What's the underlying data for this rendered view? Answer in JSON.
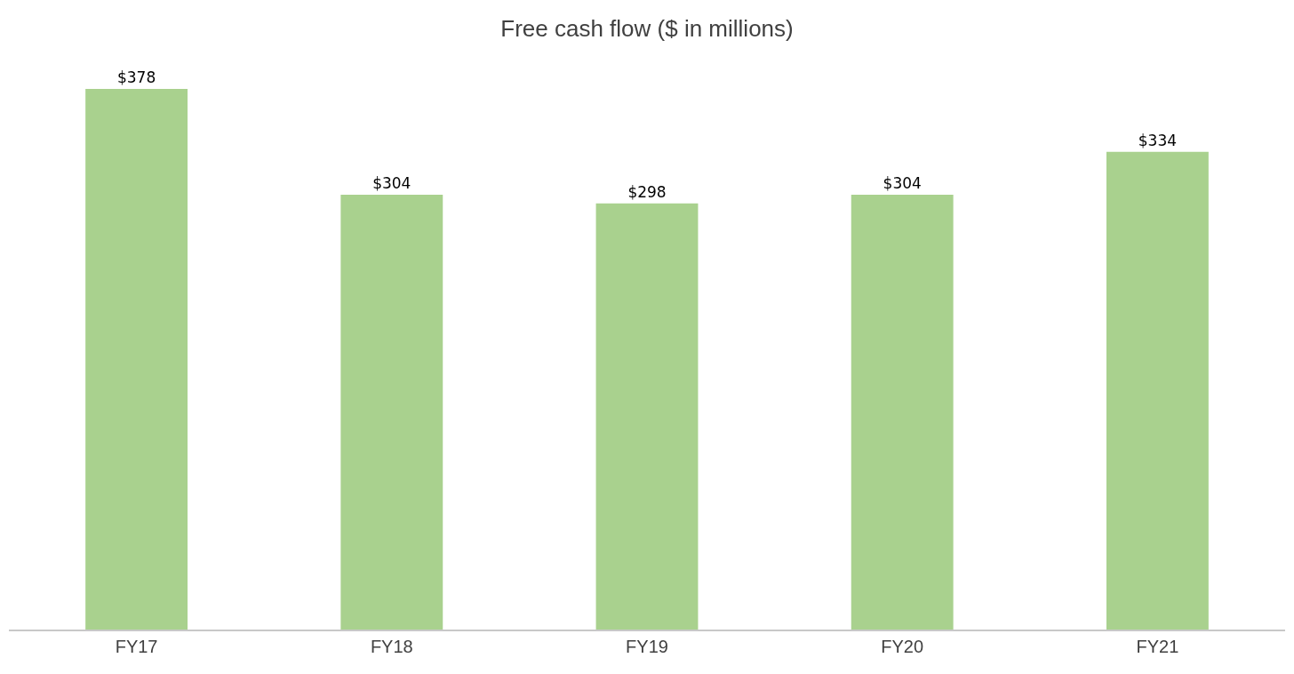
{
  "chart_data": {
    "type": "bar",
    "title": "Free cash flow ($ in millions)",
    "categories": [
      "FY17",
      "FY18",
      "FY19",
      "FY20",
      "FY21"
    ],
    "values": [
      378,
      304,
      298,
      304,
      334
    ],
    "value_labels": [
      "$378",
      "$304",
      "$298",
      "$304",
      "$334"
    ],
    "color": "#a9d18e",
    "tick_labels": "x"
  }
}
